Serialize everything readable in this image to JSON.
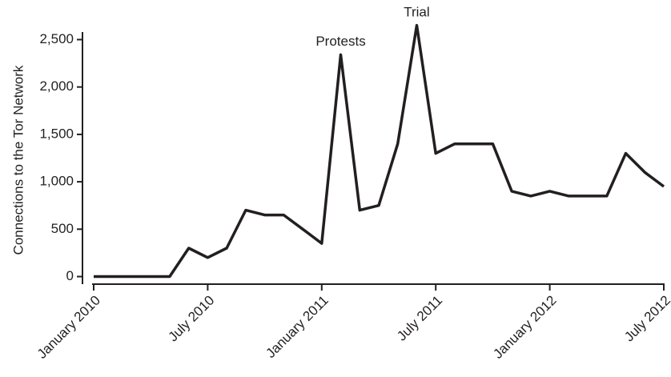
{
  "chart_data": {
    "type": "line",
    "y_label": "Connections to the Tor Network",
    "x": [
      "2010-01",
      "2010-02",
      "2010-03",
      "2010-04",
      "2010-05",
      "2010-06",
      "2010-07",
      "2010-08",
      "2010-09",
      "2010-10",
      "2010-11",
      "2010-12",
      "2011-01",
      "2011-02",
      "2011-03",
      "2011-04",
      "2011-05",
      "2011-06",
      "2011-07",
      "2011-08",
      "2011-09",
      "2011-10",
      "2011-11",
      "2011-12",
      "2012-01",
      "2012-02",
      "2012-03",
      "2012-04",
      "2012-05",
      "2012-06",
      "2012-07"
    ],
    "series": [
      {
        "color": "#231f20",
        "values": [
          0,
          0,
          0,
          0,
          0,
          300,
          200,
          300,
          700,
          650,
          650,
          500,
          350,
          2340,
          700,
          750,
          1400,
          2650,
          1300,
          1400,
          1400,
          1400,
          900,
          850,
          900,
          850,
          850,
          850,
          1300,
          1100,
          950
        ]
      }
    ],
    "xlim": [
      "2010-01",
      "2012-07"
    ],
    "xticks": [
      {
        "value": "2010-01",
        "label": "January 2010"
      },
      {
        "value": "2010-07",
        "label": "July 2010"
      },
      {
        "value": "2011-01",
        "label": "January 2011"
      },
      {
        "value": "2011-07",
        "label": "July 2011"
      },
      {
        "value": "2012-01",
        "label": "January 2012"
      },
      {
        "value": "2012-07",
        "label": "July 2012"
      }
    ],
    "ylim": [
      -80,
      2580
    ],
    "yticks": [
      0,
      500,
      {
        "value": 1000,
        "label": "1,000"
      },
      {
        "value": 1500,
        "label": "1,500"
      },
      {
        "value": 2000,
        "label": "2,000"
      },
      {
        "value": 2500,
        "label": "2,500"
      }
    ],
    "annotations": [
      {
        "text": "Protests",
        "x": "2011-02"
      },
      {
        "text": "Trial",
        "x": "2011-06"
      }
    ]
  }
}
